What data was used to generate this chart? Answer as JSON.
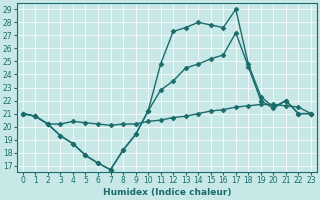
{
  "xlabel": "Humidex (Indice chaleur)",
  "bg_color": "#c8e8e8",
  "line_color": "#1a6b6b",
  "xlim": [
    -0.5,
    23.5
  ],
  "ylim": [
    16.5,
    29.5
  ],
  "xticks": [
    0,
    1,
    2,
    3,
    4,
    5,
    6,
    7,
    8,
    9,
    10,
    11,
    12,
    13,
    14,
    15,
    16,
    17,
    18,
    19,
    20,
    21,
    22,
    23
  ],
  "yticks": [
    17,
    18,
    19,
    20,
    21,
    22,
    23,
    24,
    25,
    26,
    27,
    28,
    29
  ],
  "line1_x": [
    0,
    1,
    2,
    3,
    4,
    5,
    6,
    7,
    8,
    9,
    10,
    11,
    12,
    13,
    14,
    15,
    16,
    17,
    18,
    19,
    20,
    21,
    22,
    23
  ],
  "line1_y": [
    21.0,
    20.8,
    20.2,
    20.2,
    20.4,
    20.3,
    20.2,
    20.1,
    20.2,
    20.2,
    20.4,
    20.5,
    20.7,
    20.8,
    21.0,
    21.2,
    21.3,
    21.5,
    21.6,
    21.7,
    21.7,
    21.6,
    21.5,
    21.0
  ],
  "line2_x": [
    0,
    1,
    2,
    3,
    4,
    5,
    6,
    7,
    8,
    9,
    10,
    11,
    12,
    13,
    14,
    15,
    16,
    17,
    18,
    19,
    20,
    21,
    22,
    23
  ],
  "line2_y": [
    21.0,
    20.8,
    20.2,
    19.3,
    18.7,
    17.8,
    17.2,
    16.7,
    18.2,
    19.4,
    21.2,
    24.8,
    27.3,
    27.6,
    28.0,
    27.8,
    27.6,
    29.0,
    24.8,
    22.3,
    21.5,
    22.0,
    21.0,
    21.0
  ],
  "line3_x": [
    0,
    1,
    2,
    3,
    4,
    5,
    6,
    7,
    8,
    9,
    10,
    11,
    12,
    13,
    14,
    15,
    16,
    17,
    18,
    19,
    20,
    21,
    22,
    23
  ],
  "line3_y": [
    21.0,
    20.8,
    20.2,
    19.3,
    18.7,
    17.8,
    17.2,
    16.7,
    18.2,
    19.4,
    21.2,
    22.8,
    23.5,
    24.5,
    24.8,
    25.2,
    25.5,
    27.2,
    24.6,
    22.0,
    21.4,
    22.0,
    21.0,
    21.0
  ],
  "marker": "D",
  "markersize": 2.5,
  "linewidth": 1.0,
  "tick_fontsize": 5.5,
  "label_fontsize": 6.5
}
